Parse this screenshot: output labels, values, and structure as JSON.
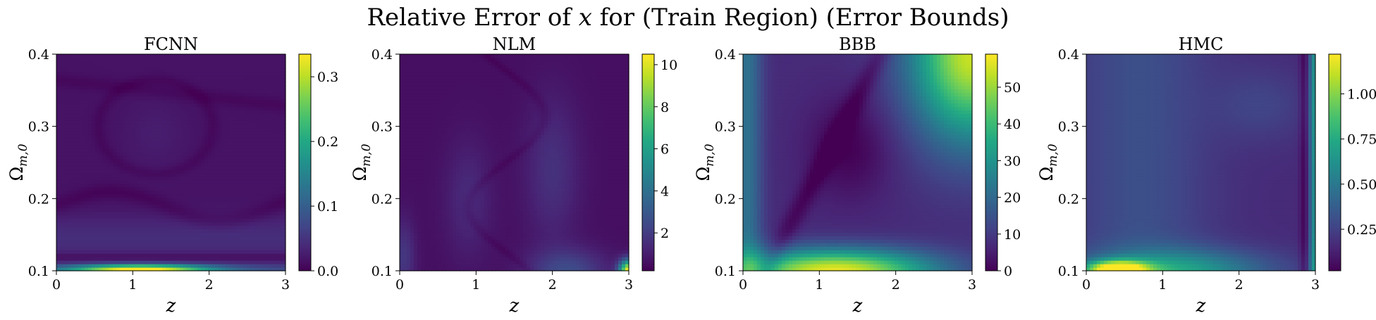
{
  "figure": {
    "title_prefix": "Relative Error of ",
    "title_var": "x",
    "title_suffix": " for (Train Region) (Error Bounds)"
  },
  "axes": {
    "xlabel": "z",
    "ylabel_main": "Ω",
    "ylabel_sub": "m,0",
    "xlim": [
      0,
      3
    ],
    "ylim": [
      0.1,
      0.4
    ],
    "xticks": [
      "0",
      "1",
      "2",
      "3"
    ],
    "yticks": [
      "0.1",
      "0.2",
      "0.3",
      "0.4"
    ]
  },
  "chart_data": [
    {
      "type": "heatmap",
      "title": "FCNN",
      "xlabel": "z",
      "ylabel": "Ω_{m,0}",
      "xlim": [
        0,
        3
      ],
      "ylim": [
        0.1,
        0.4
      ],
      "colormap": "viridis",
      "vmin": 0.0,
      "vmax": 0.335,
      "colorbar_ticks": [
        0.0,
        0.1,
        0.2,
        0.3
      ],
      "colorbar_labels": [
        "0.0",
        "0.1",
        "0.2",
        "0.3"
      ],
      "features": [
        {
          "z": 1.0,
          "omega": 0.102,
          "value": 0.33
        },
        {
          "z": 1.5,
          "omega": 0.12,
          "value": 0.02
        },
        {
          "z": 1.5,
          "omega": 0.14,
          "value": 0.12
        },
        {
          "z": 1.5,
          "omega": 0.19,
          "value": 0.02
        },
        {
          "z": 1.3,
          "omega": 0.29,
          "value": 0.08
        }
      ]
    },
    {
      "type": "heatmap",
      "title": "NLM",
      "xlabel": "z",
      "ylabel": "Ω_{m,0}",
      "xlim": [
        0,
        3
      ],
      "ylim": [
        0.1,
        0.4
      ],
      "colormap": "viridis",
      "vmin": 0.2,
      "vmax": 10.5,
      "colorbar_ticks": [
        2,
        4,
        6,
        8,
        10
      ],
      "colorbar_labels": [
        "2",
        "4",
        "6",
        "8",
        "10"
      ],
      "features": [
        {
          "z": 3.0,
          "omega": 0.1,
          "value": 10.3
        },
        {
          "z": 2.0,
          "omega": 0.25,
          "value": 2.0
        },
        {
          "z": 0.9,
          "omega": 0.2,
          "value": 1.5
        }
      ]
    },
    {
      "type": "heatmap",
      "title": "BBB",
      "xlabel": "z",
      "ylabel": "Ω_{m,0}",
      "xlim": [
        0,
        3
      ],
      "ylim": [
        0.1,
        0.4
      ],
      "colormap": "viridis",
      "vmin": 0.0,
      "vmax": 59.0,
      "colorbar_ticks": [
        0,
        10,
        20,
        30,
        40,
        50
      ],
      "colorbar_labels": [
        "0",
        "10",
        "20",
        "30",
        "40",
        "50"
      ],
      "features": [
        {
          "z": 0.9,
          "omega": 0.105,
          "value": 58
        },
        {
          "z": 3.0,
          "omega": 0.39,
          "value": 48
        },
        {
          "z": 1.4,
          "omega": 0.26,
          "value": 0.5
        }
      ]
    },
    {
      "type": "heatmap",
      "title": "HMC",
      "xlabel": "z",
      "ylabel": "Ω_{m,0}",
      "xlim": [
        0,
        3
      ],
      "ylim": [
        0.1,
        0.4
      ],
      "colormap": "viridis",
      "vmin": 0.02,
      "vmax": 1.22,
      "colorbar_ticks": [
        0.25,
        0.5,
        0.75,
        1.0
      ],
      "colorbar_labels": [
        "0.25",
        "0.50",
        "0.75",
        "1.00"
      ],
      "features": [
        {
          "z": 0.4,
          "omega": 0.105,
          "value": 1.2
        },
        {
          "z": 1.0,
          "omega": 0.25,
          "value": 0.3
        },
        {
          "z": 2.9,
          "omega": 0.12,
          "value": 0.02
        }
      ]
    }
  ]
}
